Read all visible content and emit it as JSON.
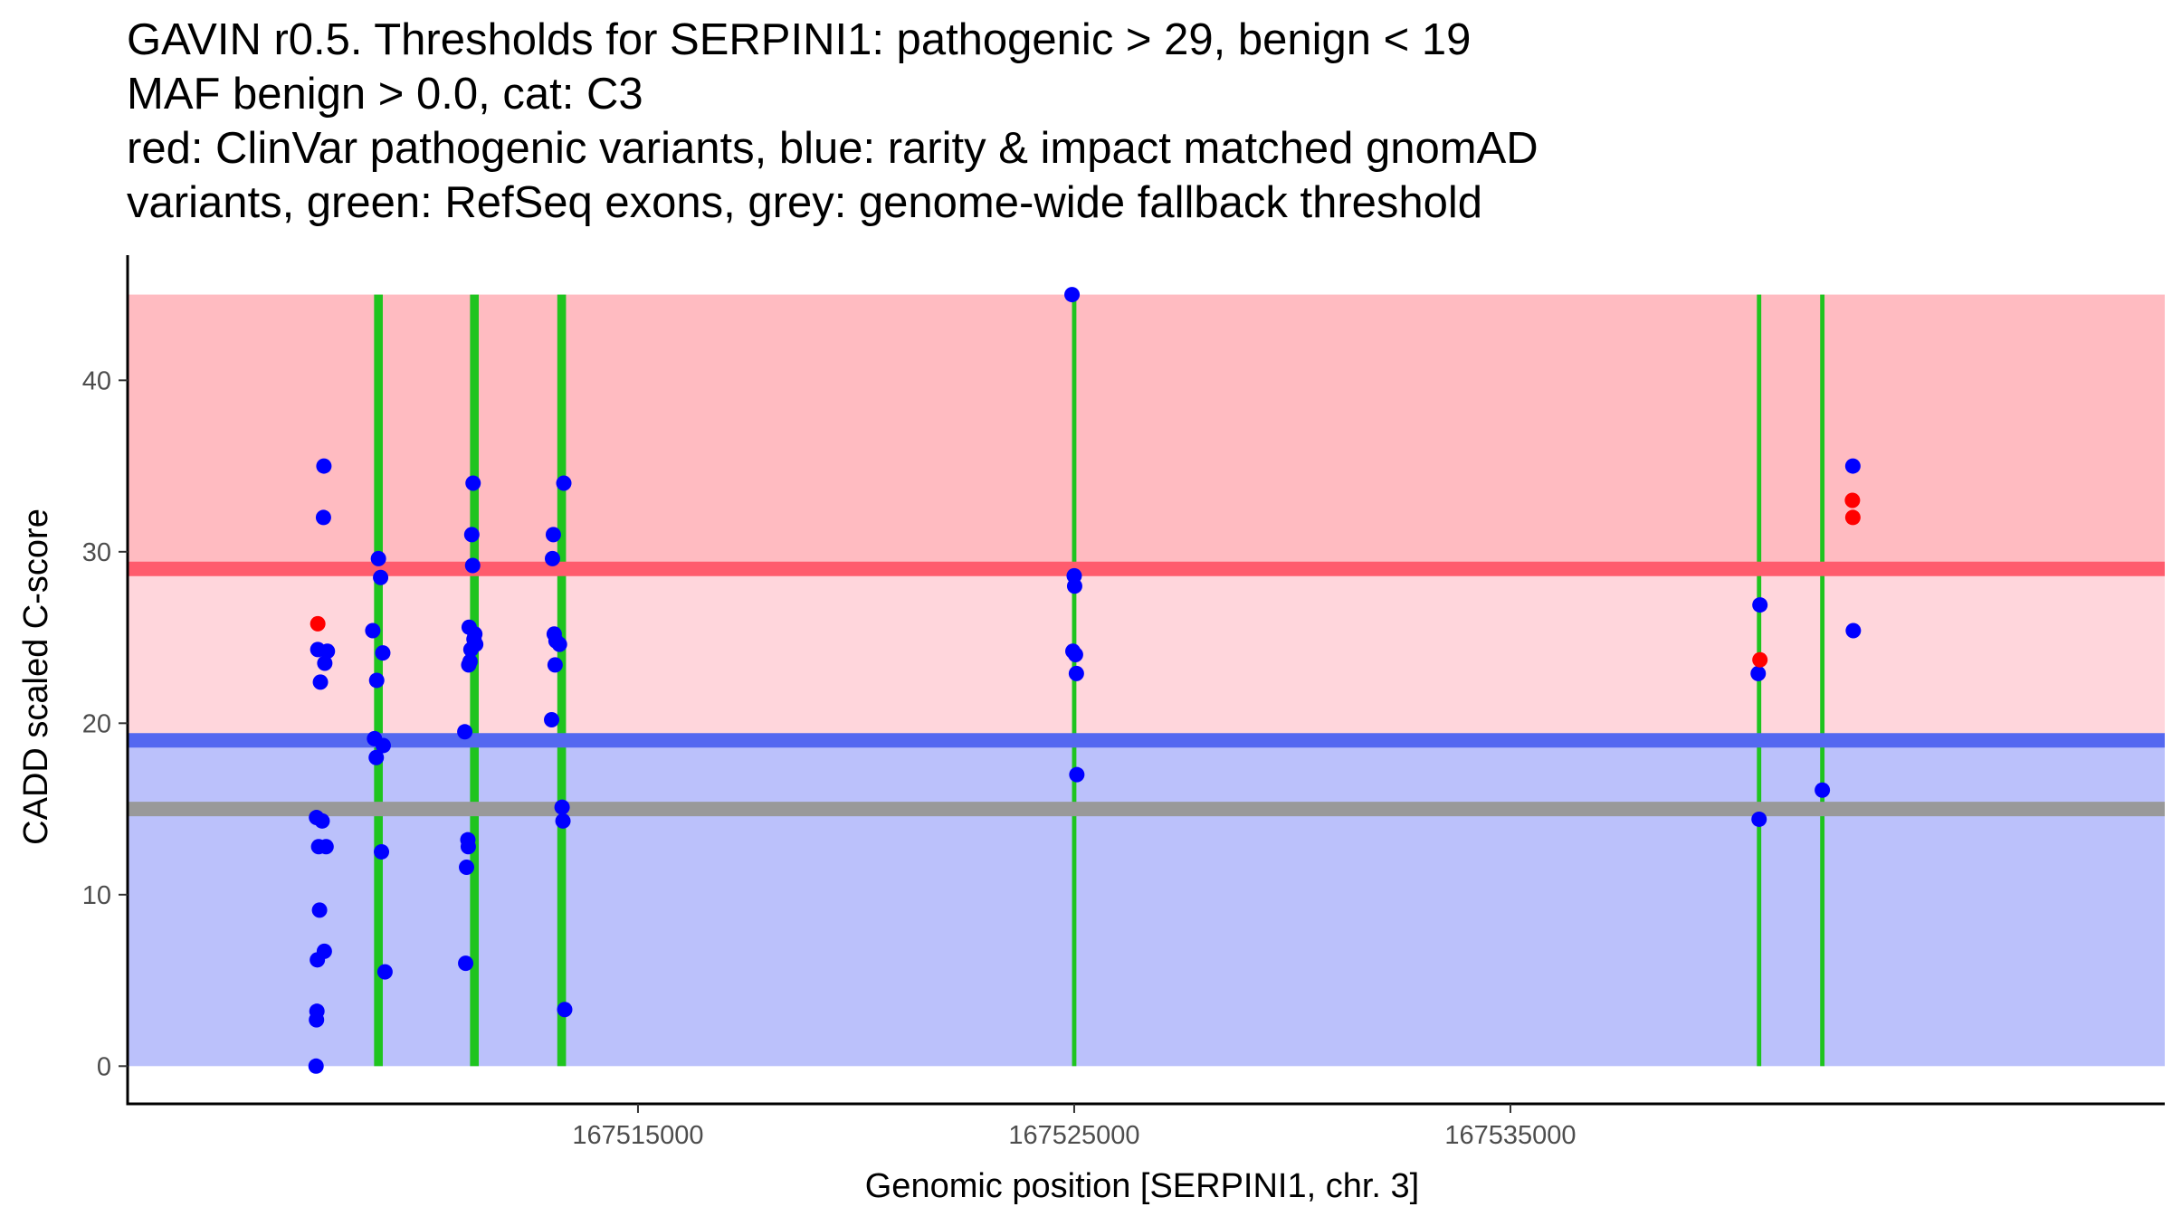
{
  "chart_data": {
    "type": "scatter",
    "title_lines": [
      "GAVIN r0.5. Thresholds for SERPINI1: pathogenic > 29, benign < 19",
      "MAF benign > 0.0, cat: C3",
      "red: ClinVar pathogenic variants, blue: rarity & impact matched gnomAD",
      "variants, green: RefSeq exons, grey: genome-wide fallback threshold"
    ],
    "xlabel": "Genomic position [SERPINI1, chr. 3]",
    "ylabel": "CADD scaled C-score",
    "xlim": [
      167503300,
      167550000
    ],
    "ylim": [
      -2.2,
      47.3
    ],
    "x_ticks": [
      167515000,
      167525000,
      167535000
    ],
    "x_tick_labels": [
      "167515000",
      "167525000",
      "167535000"
    ],
    "y_ticks": [
      0,
      10,
      20,
      30,
      40
    ],
    "y_tick_labels": [
      "0",
      "10",
      "20",
      "30",
      "40"
    ],
    "thresholds": {
      "pathogenic": 29,
      "benign": 19,
      "fallback": 15,
      "band_top": 45,
      "band_bottom": 0
    },
    "colors": {
      "pathogenic_region": "#ffbbc1",
      "intermediate_region": "#ffd6dc",
      "benign_region": "#bbc1fb",
      "pathogenic_line": "#ff5c6d",
      "benign_line": "#5468f0",
      "fallback_line": "#999999",
      "exon": "#1fc41f",
      "gnomad_point": "#0000ff",
      "clinvar_point": "#ff0000"
    },
    "exons": [
      {
        "start": 167508950,
        "end": 167509150
      },
      {
        "start": 167511150,
        "end": 167511350
      },
      {
        "start": 167513150,
        "end": 167513350
      },
      {
        "start": 167524950,
        "end": 167525050
      },
      {
        "start": 167540650,
        "end": 167540750
      },
      {
        "start": 167542100,
        "end": 167542200
      }
    ],
    "series": [
      {
        "name": "gnomAD",
        "points": [
          [
            167507620,
            0
          ],
          [
            167507630,
            2.7
          ],
          [
            167507640,
            3.2
          ],
          [
            167507650,
            6.2
          ],
          [
            167507700,
            9.1
          ],
          [
            167507680,
            12.8
          ],
          [
            167507850,
            12.8
          ],
          [
            167507630,
            14.5
          ],
          [
            167507760,
            14.3
          ],
          [
            167507720,
            22.4
          ],
          [
            167507660,
            24.3
          ],
          [
            167507820,
            23.5
          ],
          [
            167507880,
            24.2
          ],
          [
            167507790,
            32.0
          ],
          [
            167507800,
            35.0
          ],
          [
            167507810,
            6.7
          ],
          [
            167508920,
            25.4
          ],
          [
            167508960,
            19.1
          ],
          [
            167509000,
            18.0
          ],
          [
            167509010,
            22.5
          ],
          [
            167509050,
            29.6
          ],
          [
            167509100,
            28.5
          ],
          [
            167509120,
            12.5
          ],
          [
            167509150,
            24.1
          ],
          [
            167509160,
            18.7
          ],
          [
            167509200,
            5.5
          ],
          [
            167511030,
            19.5
          ],
          [
            167511050,
            6.0
          ],
          [
            167511070,
            11.6
          ],
          [
            167511100,
            13.2
          ],
          [
            167511110,
            12.8
          ],
          [
            167511120,
            23.4
          ],
          [
            167511130,
            25.6
          ],
          [
            167511150,
            23.6
          ],
          [
            167511170,
            24.3
          ],
          [
            167511190,
            31.0
          ],
          [
            167511210,
            29.2
          ],
          [
            167511220,
            34.0
          ],
          [
            167511240,
            24.9
          ],
          [
            167511260,
            25.2
          ],
          [
            167511280,
            24.6
          ],
          [
            167513020,
            20.2
          ],
          [
            167513040,
            29.6
          ],
          [
            167513060,
            31.0
          ],
          [
            167513080,
            25.2
          ],
          [
            167513100,
            23.4
          ],
          [
            167513120,
            24.8
          ],
          [
            167513200,
            24.6
          ],
          [
            167513260,
            15.1
          ],
          [
            167513280,
            14.3
          ],
          [
            167513300,
            34.0
          ],
          [
            167513320,
            3.3
          ],
          [
            167524950,
            45.0
          ],
          [
            167524970,
            24.2
          ],
          [
            167525000,
            28.6
          ],
          [
            167525010,
            28.0
          ],
          [
            167525030,
            24.0
          ],
          [
            167525050,
            22.9
          ],
          [
            167525060,
            17.0
          ],
          [
            167540680,
            22.9
          ],
          [
            167540700,
            14.4
          ],
          [
            167540720,
            26.9
          ],
          [
            167542150,
            16.1
          ],
          [
            167542850,
            35.0
          ],
          [
            167542860,
            25.4
          ]
        ]
      },
      {
        "name": "ClinVar",
        "points": [
          [
            167507660,
            25.8
          ],
          [
            167540720,
            23.7
          ],
          [
            167542840,
            33.0
          ],
          [
            167542850,
            32.0
          ]
        ]
      }
    ]
  }
}
